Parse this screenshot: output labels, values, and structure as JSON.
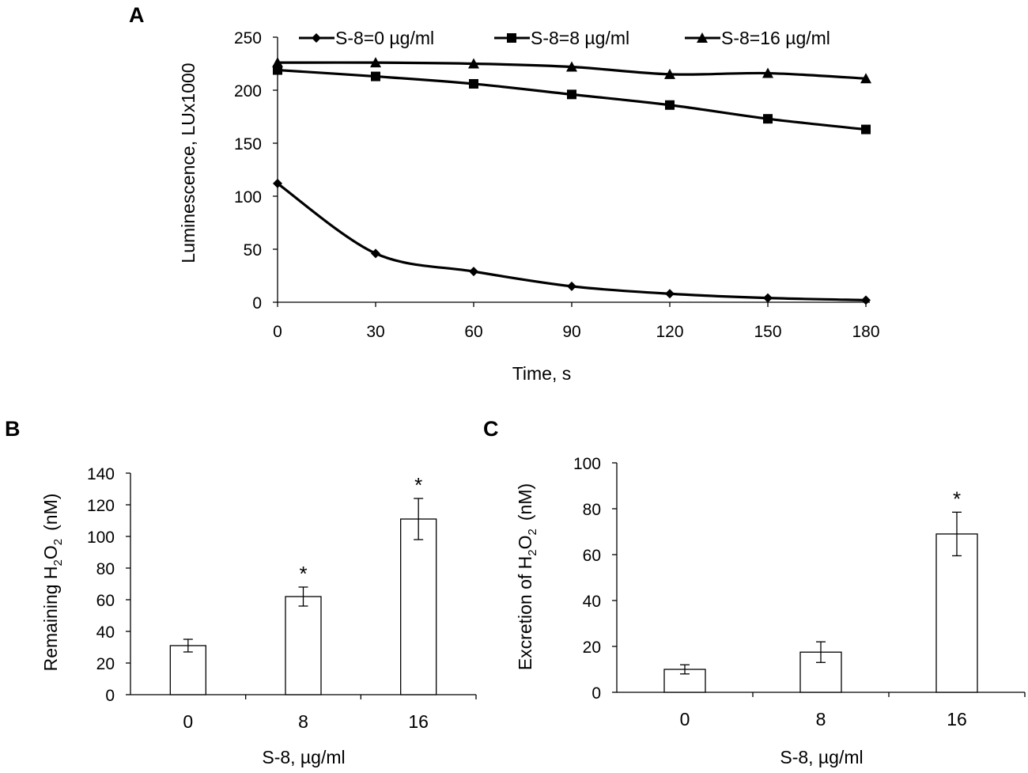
{
  "figure": {
    "panels": [
      "A",
      "B",
      "C"
    ]
  },
  "chart_data": [
    {
      "panel": "A",
      "type": "line",
      "title": "",
      "xlabel": "Time, s",
      "ylabel": "Luminescence, LUx1000",
      "x": [
        0,
        30,
        60,
        90,
        120,
        150,
        180
      ],
      "xticks": [
        "0",
        "30",
        "60",
        "90",
        "120",
        "150",
        "180"
      ],
      "yticks": [
        "0",
        "50",
        "100",
        "150",
        "200",
        "250"
      ],
      "xlim": [
        0,
        180
      ],
      "ylim": [
        0,
        250
      ],
      "legend_position": "top",
      "series": [
        {
          "name": "S-8=0 µg/ml",
          "marker": "diamond",
          "values": [
            112,
            46,
            29,
            15,
            8,
            4,
            2
          ]
        },
        {
          "name": "S-8=8 µg/ml",
          "marker": "square",
          "values": [
            219,
            213,
            206,
            196,
            186,
            173,
            163
          ]
        },
        {
          "name": "S-8=16 µg/ml",
          "marker": "triangle",
          "values": [
            226,
            226,
            225,
            222,
            215,
            216,
            211
          ]
        }
      ],
      "color": "#000000"
    },
    {
      "panel": "B",
      "type": "bar",
      "title": "",
      "xlabel": "S-8, µg/ml",
      "ylabel_main": "Remaining H",
      "ylabel_sub1": "2",
      "ylabel_mid": "O",
      "ylabel_sub2": "2",
      "ylabel_unit": "(nM)",
      "categories": [
        "0",
        "8",
        "16"
      ],
      "values": [
        31,
        62,
        111
      ],
      "errors": [
        4,
        6,
        13
      ],
      "significance": [
        "",
        "*",
        "*"
      ],
      "yticks": [
        "0",
        "20",
        "40",
        "60",
        "80",
        "100",
        "120",
        "140"
      ],
      "ylim": [
        0,
        140
      ],
      "color": "#000000"
    },
    {
      "panel": "C",
      "type": "bar",
      "title": "",
      "xlabel": "S-8, µg/ml",
      "ylabel_main": "Excretion of H",
      "ylabel_sub1": "2",
      "ylabel_mid": "O",
      "ylabel_sub2": "2",
      "ylabel_unit": "(nM)",
      "categories": [
        "0",
        "8",
        "16"
      ],
      "values": [
        10,
        17.5,
        69
      ],
      "errors": [
        2,
        4.5,
        9.5
      ],
      "significance": [
        "",
        "",
        "*"
      ],
      "yticks": [
        "0",
        "20",
        "40",
        "60",
        "80",
        "100"
      ],
      "ylim": [
        0,
        100
      ],
      "color": "#000000"
    }
  ]
}
